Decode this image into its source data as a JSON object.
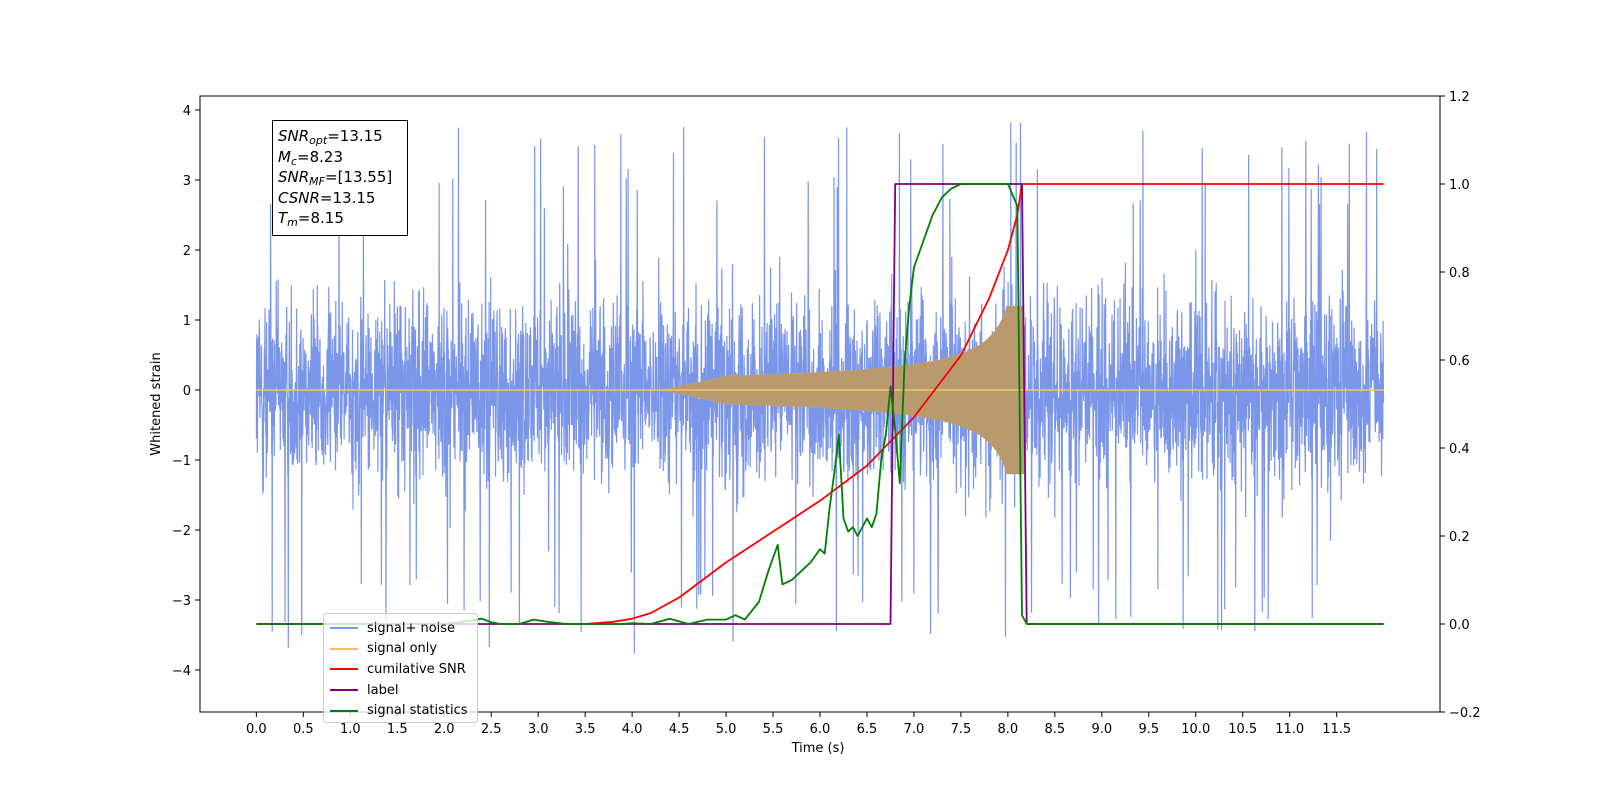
{
  "chart_data": {
    "type": "line",
    "xlabel": "Time (s)",
    "ylabel": "Whitened strain",
    "xlim": [
      -0.6,
      12.6
    ],
    "ylim": [
      -4.6,
      4.2
    ],
    "ylim_right": [
      -0.2,
      1.2
    ],
    "x_ticks": [
      "0.0",
      "0.5",
      "1.0",
      "1.5",
      "2.0",
      "2.5",
      "3.0",
      "3.5",
      "4.0",
      "4.5",
      "5.0",
      "5.5",
      "6.0",
      "6.5",
      "7.0",
      "7.5",
      "8.0",
      "8.5",
      "9.0",
      "9.5",
      "10.0",
      "10.5",
      "11.0",
      "11.5"
    ],
    "y_ticks_left": [
      "4",
      "3",
      "2",
      "1",
      "0",
      "−1",
      "−2",
      "−3",
      "−4"
    ],
    "y_ticks_right": [
      "1.2",
      "1.0",
      "0.8",
      "0.6",
      "0.4",
      "0.2",
      "0.0",
      "−0.2"
    ],
    "legend_position": "lower-left",
    "annotation": {
      "snr_opt": "13.15",
      "mc": "8.23",
      "snr_mf": "[13.55]",
      "csnr": "13.15",
      "tm": "8.15"
    },
    "series": [
      {
        "name": "signal+ noise",
        "axis": "left",
        "color": "#7b96e9",
        "description_kind": "noise_band",
        "x_range": [
          0.0,
          12.0
        ],
        "typical_amplitude": 2.0,
        "peak_amplitude": 3.8,
        "signal_peak_time": 8.15
      },
      {
        "name": "signal only",
        "axis": "left",
        "color": "#f5c26b",
        "description_kind": "chirp",
        "x_range": [
          0.0,
          12.0
        ],
        "merger_time": 8.15,
        "peak_amplitude": 1.2
      },
      {
        "name": "cumilative SNR",
        "axis": "right",
        "color": "#ff0000",
        "x": [
          0.0,
          3.5,
          3.8,
          4.0,
          4.2,
          4.5,
          5.0,
          5.5,
          6.0,
          6.5,
          7.0,
          7.5,
          7.8,
          8.0,
          8.1,
          8.15,
          12.0
        ],
        "y": [
          null,
          0.0,
          0.005,
          0.012,
          0.025,
          0.06,
          0.14,
          0.21,
          0.28,
          0.36,
          0.47,
          0.61,
          0.74,
          0.85,
          0.93,
          1.0,
          1.0
        ]
      },
      {
        "name": "label",
        "axis": "right",
        "color": "#800080",
        "x": [
          0.0,
          6.75,
          6.8,
          8.15,
          8.2,
          12.0
        ],
        "y": [
          0.0,
          0.0,
          1.0,
          1.0,
          0.0,
          0.0
        ]
      },
      {
        "name": "signal statistics",
        "axis": "right",
        "color": "#008000",
        "x": [
          0.0,
          2.0,
          2.2,
          2.4,
          2.5,
          2.6,
          2.8,
          2.95,
          3.1,
          3.3,
          3.6,
          3.9,
          4.0,
          4.2,
          4.4,
          4.6,
          4.8,
          5.0,
          5.1,
          5.2,
          5.35,
          5.45,
          5.55,
          5.6,
          5.7,
          5.8,
          5.9,
          6.0,
          6.05,
          6.1,
          6.15,
          6.2,
          6.25,
          6.3,
          6.35,
          6.4,
          6.5,
          6.55,
          6.6,
          6.65,
          6.7,
          6.75,
          6.8,
          6.85,
          6.9,
          6.95,
          7.0,
          7.1,
          7.2,
          7.3,
          7.4,
          7.5,
          7.6,
          8.0,
          8.1,
          8.15,
          8.2,
          8.3,
          12.0
        ],
        "y": [
          0.0,
          0.0,
          0.005,
          0.012,
          0.004,
          0.0,
          0.0,
          0.01,
          0.005,
          0.0,
          0.0,
          0.0,
          0.002,
          0.0,
          0.012,
          0.0,
          0.01,
          0.01,
          0.02,
          0.01,
          0.05,
          0.12,
          0.18,
          0.09,
          0.1,
          0.12,
          0.14,
          0.17,
          0.16,
          0.26,
          0.34,
          0.43,
          0.24,
          0.21,
          0.22,
          0.2,
          0.24,
          0.22,
          0.25,
          0.37,
          0.43,
          0.54,
          0.44,
          0.32,
          0.59,
          0.72,
          0.81,
          0.87,
          0.93,
          0.97,
          0.99,
          1.0,
          1.0,
          1.0,
          0.95,
          0.02,
          0.0,
          0.0,
          0.0
        ]
      }
    ]
  }
}
